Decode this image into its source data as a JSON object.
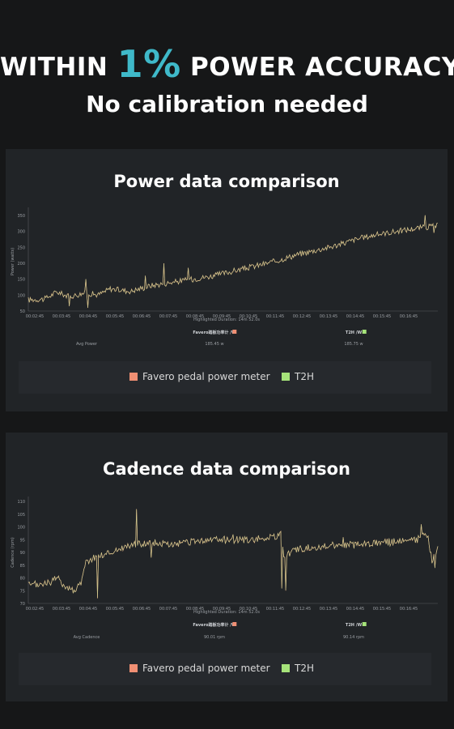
{
  "header": {
    "headline_pre": "WITHIN ",
    "headline_big": "1%",
    "headline_post": " POWER ACCURACY",
    "subline": "No calibration needed"
  },
  "colors": {
    "favero": "#f08f73",
    "t2h": "#a6e37a",
    "line": "#cfc98e",
    "accent": "#3fb9c9"
  },
  "chart_data": [
    {
      "type": "line",
      "title": "Power data comparison",
      "ylabel": "Power (watts)",
      "ylim": [
        50,
        360
      ],
      "yticks": [
        50,
        100,
        150,
        200,
        250,
        300,
        350
      ],
      "x_labels": [
        "00:02:45",
        "00:03:45",
        "00:04:45",
        "00:05:45",
        "00:06:45",
        "00:07:45",
        "00:08:45",
        "00:09:45",
        "00:10:45",
        "00:11:45",
        "00:12:45",
        "00:13:45",
        "00:14:45",
        "00:15:45",
        "00:16:45"
      ],
      "duration": "Highlighted Duration: 14m 52.0s",
      "summary": {
        "label": "Avg Power",
        "series": [
          {
            "name": "Favero踏板功率计 /W",
            "value": "185.45 w"
          },
          {
            "name": "T2H /W",
            "value": "185.75 w"
          }
        ]
      },
      "anchors": [
        [
          0,
          85
        ],
        [
          0.04,
          88
        ],
        [
          0.07,
          110
        ],
        [
          0.1,
          95
        ],
        [
          0.14,
          108
        ],
        [
          0.17,
          100
        ],
        [
          0.2,
          120
        ],
        [
          0.25,
          112
        ],
        [
          0.3,
          130
        ],
        [
          0.35,
          140
        ],
        [
          0.4,
          150
        ],
        [
          0.45,
          160
        ],
        [
          0.5,
          175
        ],
        [
          0.55,
          190
        ],
        [
          0.6,
          205
        ],
        [
          0.65,
          225
        ],
        [
          0.7,
          240
        ],
        [
          0.75,
          255
        ],
        [
          0.8,
          275
        ],
        [
          0.85,
          290
        ],
        [
          0.9,
          300
        ],
        [
          0.95,
          310
        ],
        [
          1,
          318
        ]
      ],
      "noise": 9,
      "spikes": [
        [
          0.14,
          150
        ],
        [
          0.145,
          60
        ],
        [
          0.1,
          65
        ],
        [
          0.33,
          200
        ],
        [
          0.39,
          185
        ],
        [
          0.285,
          160
        ],
        [
          0.97,
          350
        ],
        [
          0.99,
          295
        ]
      ],
      "legend": [
        "Favero pedal power meter",
        "T2H"
      ]
    },
    {
      "type": "line",
      "title": "Cadence data comparison",
      "ylabel": "Cadence (rpm)",
      "ylim": [
        70,
        110
      ],
      "yticks": [
        70,
        75,
        80,
        85,
        90,
        95,
        100,
        105,
        110
      ],
      "x_labels": [
        "00:02:45",
        "00:03:45",
        "00:04:45",
        "00:05:45",
        "00:06:45",
        "00:07:45",
        "00:08:45",
        "00:09:45",
        "00:10:45",
        "00:11:45",
        "00:12:45",
        "00:13:45",
        "00:14:45",
        "00:15:45",
        "00:16:45"
      ],
      "duration": "Highlighted Duration: 14m 52.0s",
      "summary": {
        "label": "Avg Cadence",
        "series": [
          {
            "name": "Favero踏板功率计 /W",
            "value": "90.01 rpm"
          },
          {
            "name": "T2H /W",
            "value": "90.14 rpm"
          }
        ]
      },
      "anchors": [
        [
          0,
          77
        ],
        [
          0.05,
          78
        ],
        [
          0.07,
          80
        ],
        [
          0.09,
          77
        ],
        [
          0.11,
          75
        ],
        [
          0.13,
          78
        ],
        [
          0.14,
          86
        ],
        [
          0.16,
          88
        ],
        [
          0.2,
          90
        ],
        [
          0.25,
          93
        ],
        [
          0.3,
          94
        ],
        [
          0.35,
          93
        ],
        [
          0.4,
          94
        ],
        [
          0.45,
          95
        ],
        [
          0.5,
          95
        ],
        [
          0.55,
          95
        ],
        [
          0.6,
          96
        ],
        [
          0.618,
          97
        ],
        [
          0.625,
          88
        ],
        [
          0.65,
          91
        ],
        [
          0.7,
          92
        ],
        [
          0.75,
          93
        ],
        [
          0.8,
          93
        ],
        [
          0.85,
          94
        ],
        [
          0.9,
          94
        ],
        [
          0.95,
          95
        ],
        [
          0.975,
          97
        ],
        [
          0.985,
          87
        ],
        [
          1,
          91
        ]
      ],
      "noise": 1.4,
      "spikes": [
        [
          0.265,
          107
        ],
        [
          0.62,
          76
        ],
        [
          0.628,
          75
        ],
        [
          0.3,
          98
        ],
        [
          0.5,
          97
        ],
        [
          0.96,
          101
        ],
        [
          0.992,
          84
        ],
        [
          0.17,
          72
        ],
        [
          0.3,
          88
        ],
        [
          0.77,
          96
        ]
      ],
      "legend": [
        "Favero pedal power meter",
        "T2H"
      ]
    }
  ]
}
